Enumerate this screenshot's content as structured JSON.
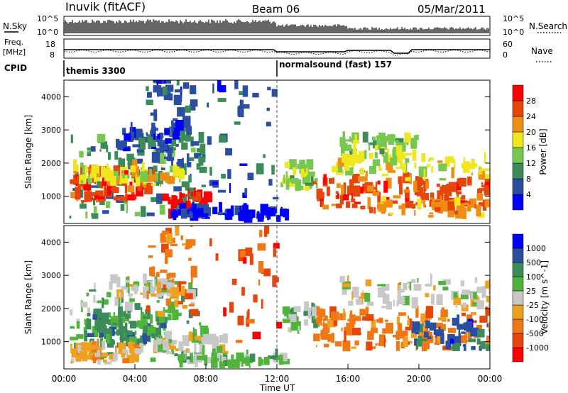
{
  "header": {
    "station": "Inuvik (fitACF)",
    "beam": "Beam 06",
    "date": "05/Mar/2011"
  },
  "top_panels": {
    "nsky_label": "N.Sky",
    "nsky_ticks": [
      "10^5",
      "10^0"
    ],
    "nsearch_label": "N.Search",
    "nsearch_ticks": [
      "10^5",
      "10^0"
    ],
    "freq_label": "Freq.",
    "freq_unit": "[MHz]",
    "freq_ticks": [
      "18",
      "8"
    ],
    "nave_label": "Nave",
    "nave_ticks": [
      "60",
      "0"
    ],
    "cpid_label": "CPID",
    "cpid_segments": [
      {
        "label": "themis 3300",
        "start_hour": 0
      },
      {
        "label": "normalsound (fast) 157",
        "start_hour": 12
      }
    ]
  },
  "colors": {
    "power": [
      "#0000ff",
      "#2a4fa0",
      "#3c8c5a",
      "#78c850",
      "#f0e61e",
      "#f08c14",
      "#e6460a",
      "#ff0000"
    ],
    "velocity": [
      "#ff0000",
      "#e6460a",
      "#f07814",
      "#f0a020",
      "#c8c8c8",
      "#50b43c",
      "#3c8c5a",
      "#2a4fa0",
      "#0000ff"
    ]
  },
  "chart_data": [
    {
      "type": "heatmap",
      "name": "power",
      "ylabel": "Slant Range [km]",
      "colorbar_label": "Power [dB]",
      "colorbar_ticks": [
        "4",
        "8",
        "12",
        "16",
        "20",
        "24",
        "28"
      ],
      "xlim": [
        0,
        24
      ],
      "ylim": [
        180,
        4500
      ],
      "y_ticks": [
        "1000",
        "2000",
        "3000",
        "4000"
      ],
      "blobs": [
        {
          "x": 0.3,
          "y": 300,
          "w": 7.5,
          "h": 2400,
          "c": 2,
          "n": 130
        },
        {
          "x": 0.3,
          "y": 800,
          "w": 4.5,
          "h": 900,
          "c": 6,
          "n": 90
        },
        {
          "x": 0.5,
          "y": 1300,
          "w": 6.0,
          "h": 500,
          "c": 4,
          "n": 60
        },
        {
          "x": 3.0,
          "y": 2300,
          "w": 3.5,
          "h": 700,
          "c": 1,
          "n": 40
        },
        {
          "x": 5.5,
          "y": 300,
          "w": 2.5,
          "h": 700,
          "c": 7,
          "n": 40
        },
        {
          "x": 4.6,
          "y": 1700,
          "w": 2.6,
          "h": 2800,
          "c": 1,
          "n": 60
        },
        {
          "x": 6.0,
          "y": 200,
          "w": 6.5,
          "h": 300,
          "c": 0,
          "n": 70
        },
        {
          "x": 8.0,
          "y": 900,
          "w": 4.0,
          "h": 3400,
          "c": 1,
          "n": 40
        },
        {
          "x": 12.2,
          "y": 1100,
          "w": 2.0,
          "h": 800,
          "c": 3,
          "n": 40
        },
        {
          "x": 14.0,
          "y": 600,
          "w": 10.0,
          "h": 800,
          "c": 6,
          "n": 120
        },
        {
          "x": 15.5,
          "y": 2100,
          "w": 4.5,
          "h": 600,
          "c": 3,
          "n": 60
        },
        {
          "x": 15.0,
          "y": 1400,
          "w": 9.0,
          "h": 700,
          "c": 4,
          "n": 70
        },
        {
          "x": 17.0,
          "y": 300,
          "w": 7.0,
          "h": 500,
          "c": 5,
          "n": 50
        }
      ]
    },
    {
      "type": "heatmap",
      "name": "velocity",
      "ylabel": "Slant Range [km]",
      "colorbar_label": "Velocity [m s^-1]",
      "colorbar_ticks": [
        "-1000",
        "-500",
        "-100",
        "-25",
        "25",
        "100",
        "500",
        "1000"
      ],
      "xlim": [
        0,
        24
      ],
      "ylim": [
        180,
        4500
      ],
      "y_ticks": [
        "1000",
        "2000",
        "3000",
        "4000"
      ],
      "blobs": [
        {
          "x": 0.3,
          "y": 300,
          "w": 7.5,
          "h": 2400,
          "c": 5,
          "n": 110
        },
        {
          "x": 1.0,
          "y": 800,
          "w": 4.5,
          "h": 1000,
          "c": 6,
          "n": 90
        },
        {
          "x": 2.5,
          "y": 2300,
          "w": 4.0,
          "h": 500,
          "c": 4,
          "n": 50
        },
        {
          "x": 0.3,
          "y": 300,
          "w": 4.0,
          "h": 500,
          "c": 3,
          "n": 50
        },
        {
          "x": 5.0,
          "y": 600,
          "w": 4.0,
          "h": 500,
          "c": 4,
          "n": 50
        },
        {
          "x": 4.6,
          "y": 1700,
          "w": 2.6,
          "h": 2800,
          "c": 2,
          "n": 45
        },
        {
          "x": 6.0,
          "y": 200,
          "w": 6.5,
          "h": 300,
          "c": 5,
          "n": 60
        },
        {
          "x": 8.0,
          "y": 900,
          "w": 4.0,
          "h": 3400,
          "c": 1,
          "n": 35
        },
        {
          "x": 12.2,
          "y": 1200,
          "w": 2.0,
          "h": 700,
          "c": 5,
          "n": 35
        },
        {
          "x": 14.0,
          "y": 700,
          "w": 10.0,
          "h": 1100,
          "c": 2,
          "n": 130
        },
        {
          "x": 15.5,
          "y": 1900,
          "w": 8.5,
          "h": 900,
          "c": 4,
          "n": 80
        },
        {
          "x": 19.5,
          "y": 700,
          "w": 4.5,
          "h": 800,
          "c": 7,
          "n": 50
        }
      ]
    }
  ],
  "x_axis": {
    "label": "Time UT",
    "ticks": [
      "00:00",
      "04:00",
      "08:00",
      "12:00",
      "16:00",
      "20:00",
      "00:00"
    ]
  }
}
